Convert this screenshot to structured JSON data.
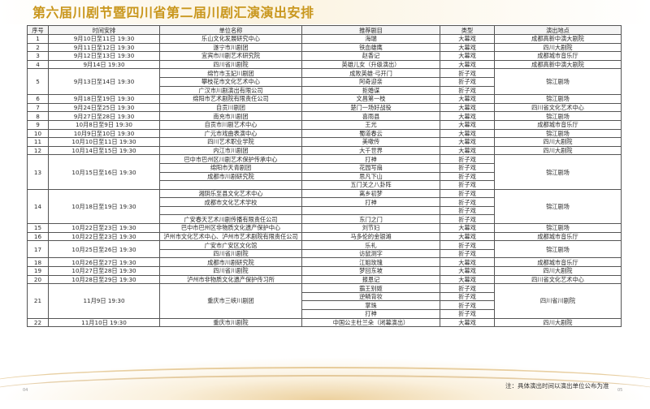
{
  "title": "第六届川剧节暨四川省第二届川剧汇演演出安排",
  "headers": [
    "序号",
    "时间安排",
    "单位名称",
    "推荐剧目",
    "类型",
    "演出地点"
  ],
  "rows": [
    [
      {
        "t": "1"
      },
      {
        "t": "9月10日至11日 19:30"
      },
      {
        "t": "乐山文化发展研究中心"
      },
      {
        "t": "海瑞"
      },
      {
        "t": "大幕戏"
      },
      {
        "t": "成都高新中演大剧院"
      }
    ],
    [
      {
        "t": "2"
      },
      {
        "t": "9月11日至12日 19:30"
      },
      {
        "t": "遂宁市川剧团"
      },
      {
        "t": "铁血雄鹰"
      },
      {
        "t": "大幕戏"
      },
      {
        "t": "四川大剧院"
      }
    ],
    [
      {
        "t": "3"
      },
      {
        "t": "9月12日至13日 19:30"
      },
      {
        "t": "宜宾市川剧艺术研究院"
      },
      {
        "t": "赵香记"
      },
      {
        "t": "大幕戏"
      },
      {
        "t": "成都城市音乐厅"
      }
    ],
    [
      {
        "t": "4"
      },
      {
        "t": "9月14日 19:30"
      },
      {
        "t": "四川省川剧院"
      },
      {
        "t": "英雄儿女（升级演出）"
      },
      {
        "t": "大幕戏"
      },
      {
        "t": "成都高新中演大剧院"
      }
    ],
    [
      {
        "t": "5",
        "rs": 3
      },
      {
        "t": "9月13日至14日 19:30",
        "rs": 3
      },
      {
        "t": "绵竹市玉妃川剧团"
      },
      {
        "t": "成败英雄·弓开门"
      },
      {
        "t": "折子戏"
      },
      {
        "t": "锦江剧场",
        "rs": 3
      }
    ],
    [
      {
        "t": "攀枝花市文化艺术中心"
      },
      {
        "t": "阿奇迎亲"
      },
      {
        "t": "折子戏"
      }
    ],
    [
      {
        "t": "广汉市川剧演出有限公司"
      },
      {
        "t": "拒婚谋"
      },
      {
        "t": "折子戏"
      }
    ],
    [
      {
        "t": "6"
      },
      {
        "t": "9月18日至19日 19:30"
      },
      {
        "t": "绵阳市艺术剧院有限责任公司"
      },
      {
        "t": "文昌第一枝"
      },
      {
        "t": "大幕戏"
      },
      {
        "t": "锦江剧场"
      }
    ],
    [
      {
        "t": "7"
      },
      {
        "t": "9月24日至25日 19:30"
      },
      {
        "t": "自贡川剧团"
      },
      {
        "t": "楚门一场好战役"
      },
      {
        "t": "大幕戏"
      },
      {
        "t": "四川省文化艺术中心"
      }
    ],
    [
      {
        "t": "8"
      },
      {
        "t": "9月27日至28日 19:30"
      },
      {
        "t": "南充市川剧团"
      },
      {
        "t": "喜雨县"
      },
      {
        "t": "大幕戏"
      },
      {
        "t": "锦江剧场"
      }
    ],
    [
      {
        "t": "9"
      },
      {
        "t": "10月8日至9日 19:30"
      },
      {
        "t": "自贡市川剧艺术中心"
      },
      {
        "t": "王光"
      },
      {
        "t": "大幕戏"
      },
      {
        "t": "成都城市音乐厅"
      }
    ],
    [
      {
        "t": "10"
      },
      {
        "t": "10月9日至10日 19:30"
      },
      {
        "t": "广元市戏曲表演中心"
      },
      {
        "t": "蜀道春云"
      },
      {
        "t": "大幕戏"
      },
      {
        "t": "锦江剧场"
      }
    ],
    [
      {
        "t": "11"
      },
      {
        "t": "10月10日至11日 19:30"
      },
      {
        "t": "四川艺术职业学院"
      },
      {
        "t": "美嗽传"
      },
      {
        "t": "大幕戏"
      },
      {
        "t": "四川大剧院"
      }
    ],
    [
      {
        "t": "12"
      },
      {
        "t": "10月14日至15日 19:30"
      },
      {
        "t": "内江市川剧团"
      },
      {
        "t": "大千世界"
      },
      {
        "t": "大幕戏"
      },
      {
        "t": "四川大剧院"
      }
    ],
    [
      {
        "t": "13",
        "rs": 4
      },
      {
        "t": "10月15日至16日 19:30",
        "rs": 4
      },
      {
        "t": "巴中市巴州区川剧艺术保护传承中心"
      },
      {
        "t": "打神"
      },
      {
        "t": "折子戏"
      },
      {
        "t": "锦江剧场",
        "rs": 4
      }
    ],
    [
      {
        "t": "绵阳市天青剧团"
      },
      {
        "t": "花园写扇"
      },
      {
        "t": "折子戏"
      }
    ],
    [
      {
        "t": "成都市川剧研究院"
      },
      {
        "t": "思凡下山"
      },
      {
        "t": "折子戏"
      }
    ],
    [
      {
        "t": ""
      },
      {
        "t": "五门关之八卦阵"
      },
      {
        "t": "折子戏"
      }
    ],
    [
      {
        "t": "14",
        "rs": 4
      },
      {
        "t": "10月18日至19日 19:30",
        "rs": 4
      },
      {
        "t": "湘阴乐至县文化艺术中心"
      },
      {
        "t": "离乡初梦"
      },
      {
        "t": "折子戏"
      },
      {
        "t": "锦江剧场",
        "rs": 4
      }
    ],
    [
      {
        "t": "成都市文化艺术学校"
      },
      {
        "t": "打神"
      },
      {
        "t": "折子戏"
      }
    ],
    [
      {
        "t": ""
      },
      {
        "t": ""
      },
      {
        "t": "折子戏"
      }
    ],
    [
      {
        "t": "广安春天艺术川剧传播有限责任公司"
      },
      {
        "t": "东门之门"
      },
      {
        "t": "折子戏"
      }
    ],
    [
      {
        "t": "15"
      },
      {
        "t": "10月22日至23日 19:30"
      },
      {
        "t": "巴中市巴州区非物质文化遗产保护中心"
      },
      {
        "t": "刘节妇"
      },
      {
        "t": "大幕戏"
      },
      {
        "t": "锦江剧场"
      }
    ],
    [
      {
        "t": "16"
      },
      {
        "t": "10月22日至23日 19:30"
      },
      {
        "t": "泸州市文化艺术中心、泸州市艺术剧院有限责任公司"
      },
      {
        "t": "马多伦的金银滩"
      },
      {
        "t": "大幕戏"
      },
      {
        "t": "成都城市音乐厅"
      }
    ],
    [
      {
        "t": "17",
        "rs": 2
      },
      {
        "t": "10月25日至26日 19:30",
        "rs": 2
      },
      {
        "t": "广安市广安区文化馆"
      },
      {
        "t": "乐礼"
      },
      {
        "t": "折子戏"
      },
      {
        "t": "锦江剧场",
        "rs": 2
      }
    ],
    [
      {
        "t": "四川省川剧院"
      },
      {
        "t": "访鼠测字"
      },
      {
        "t": "折子戏"
      }
    ],
    [
      {
        "t": "18"
      },
      {
        "t": "10月26日至27日 19:30"
      },
      {
        "t": "成都市川剧研究院"
      },
      {
        "t": "江姐玫瑰"
      },
      {
        "t": "大幕戏"
      },
      {
        "t": "成都城市音乐厅"
      }
    ],
    [
      {
        "t": "19"
      },
      {
        "t": "10月27日至28日 19:30"
      },
      {
        "t": "四川省川剧院"
      },
      {
        "t": "梦回东坡"
      },
      {
        "t": "大幕戏"
      },
      {
        "t": "四川大剧院"
      }
    ],
    [
      {
        "t": "20"
      },
      {
        "t": "10月28日至29日 19:30"
      },
      {
        "t": "泸州市非物质文化遗产保护传习所"
      },
      {
        "t": "报恩记"
      },
      {
        "t": "大幕戏"
      },
      {
        "t": "四川省文化艺术中心"
      }
    ],
    [
      {
        "t": "21",
        "rs": 4
      },
      {
        "t": "11月9日 19:30",
        "rs": 4
      },
      {
        "t": "重庆市三峡川剧团",
        "rs": 4
      },
      {
        "t": "霸王别姬"
      },
      {
        "t": "折子戏"
      },
      {
        "t": "四川省川剧院",
        "rs": 4
      }
    ],
    [
      {
        "t": "逆鳞背妆"
      },
      {
        "t": "折子戏"
      }
    ],
    [
      {
        "t": "掌珠"
      },
      {
        "t": "折子戏"
      }
    ],
    [
      {
        "t": "打神"
      },
      {
        "t": "折子戏"
      }
    ],
    [
      {
        "t": "22"
      },
      {
        "t": "11月10日 19:30"
      },
      {
        "t": "重庆市川剧院"
      },
      {
        "t": "中国公主杜兰朵（闭幕演出）"
      },
      {
        "t": "大幕戏"
      },
      {
        "t": "四川大剧院"
      }
    ]
  ],
  "note": "注：具体演出时间以演出单位公布为准",
  "page_left": "04",
  "page_right": "05"
}
